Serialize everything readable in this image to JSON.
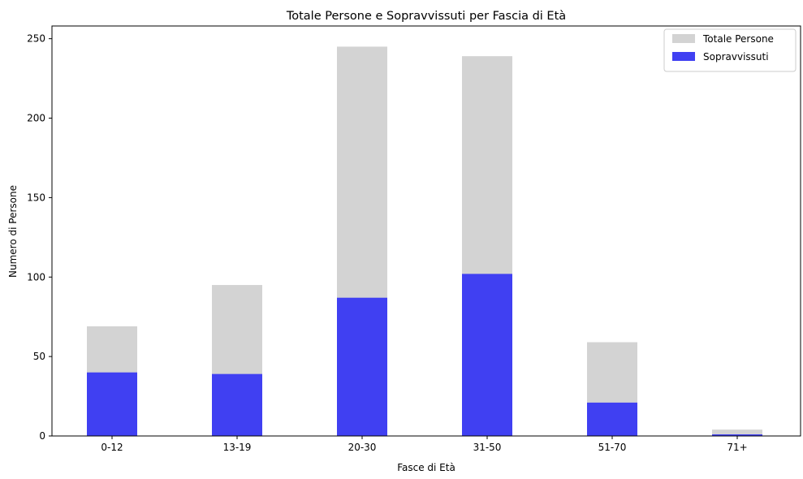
{
  "chart_data": {
    "type": "bar",
    "title": "Totale Persone e Sopravvissuti per Fascia di Età",
    "xlabel": "Fasce di Età",
    "ylabel": "Numero di Persone",
    "categories": [
      "0-12",
      "13-19",
      "20-30",
      "31-50",
      "51-70",
      "71+"
    ],
    "ylim": [
      0,
      258
    ],
    "yticks": [
      0,
      50,
      100,
      150,
      200,
      250
    ],
    "grid": false,
    "legend_position": "top-right",
    "series": [
      {
        "name": "Totale Persone",
        "color": "#d3d3d3",
        "values": [
          69,
          95,
          245,
          239,
          59,
          4
        ]
      },
      {
        "name": "Sopravvissuti",
        "color": "#4040f2",
        "values": [
          40,
          39,
          87,
          102,
          21,
          1
        ]
      }
    ]
  }
}
